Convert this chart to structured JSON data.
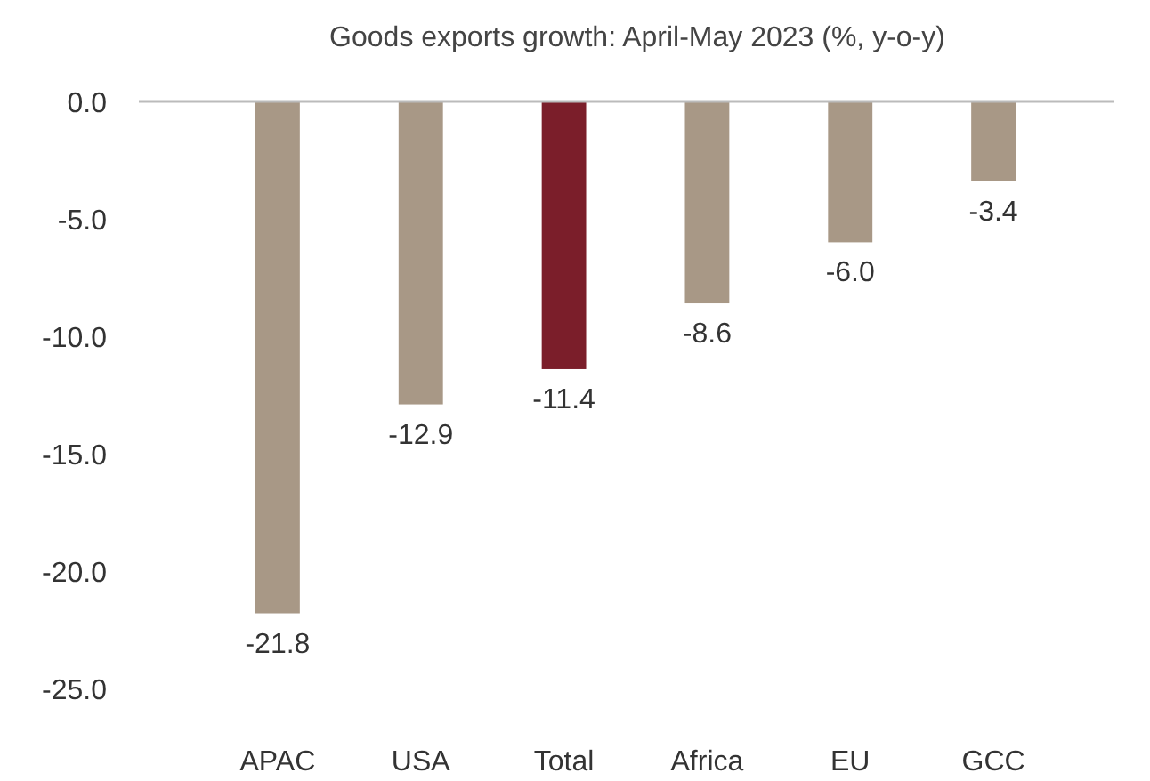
{
  "chart_data": {
    "type": "bar",
    "subtitle": "Goods exports growth: April-May 2023 (%, y-o-y)",
    "categories": [
      "APAC",
      "USA",
      "Total",
      "Africa",
      "EU",
      "GCC"
    ],
    "values": [
      -21.8,
      -12.9,
      -11.4,
      -8.6,
      -6.0,
      -3.4
    ],
    "colors": [
      "#a89886",
      "#a89886",
      "#7b1e2a",
      "#a89886",
      "#a89886",
      "#a89886"
    ],
    "value_labels": [
      "-21.8",
      "-12.9",
      "-11.4",
      "-8.6",
      "-6.0",
      "-3.4"
    ],
    "ylim": [
      -25,
      0
    ],
    "yticks": [
      {
        "value": 0,
        "label": "0.0"
      },
      {
        "value": -5,
        "label": "-5.0"
      },
      {
        "value": -10,
        "label": "-10.0"
      },
      {
        "value": -15,
        "label": "-15.0"
      },
      {
        "value": -20,
        "label": "-20.0"
      },
      {
        "value": -25,
        "label": "-25.0"
      }
    ],
    "grid": false
  }
}
